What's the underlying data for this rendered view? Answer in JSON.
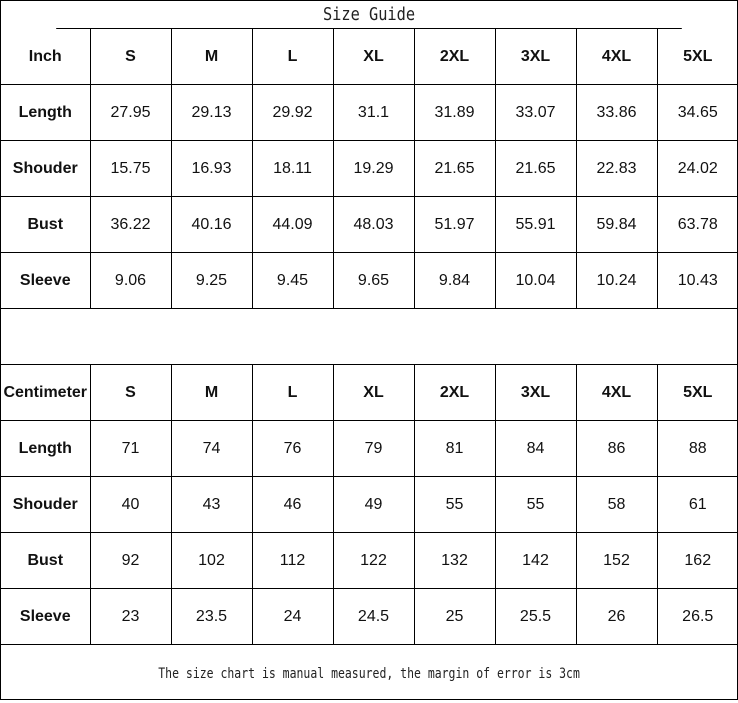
{
  "title": "Size Guide",
  "sizes": [
    "S",
    "M",
    "L",
    "XL",
    "2XL",
    "3XL",
    "4XL",
    "5XL"
  ],
  "tables": [
    {
      "unit": "Inch",
      "rows": [
        {
          "label": "Length",
          "values": [
            "27.95",
            "29.13",
            "29.92",
            "31.1",
            "31.89",
            "33.07",
            "33.86",
            "34.65"
          ]
        },
        {
          "label": "Shouder",
          "values": [
            "15.75",
            "16.93",
            "18.11",
            "19.29",
            "21.65",
            "21.65",
            "22.83",
            "24.02"
          ]
        },
        {
          "label": "Bust",
          "values": [
            "36.22",
            "40.16",
            "44.09",
            "48.03",
            "51.97",
            "55.91",
            "59.84",
            "63.78"
          ]
        },
        {
          "label": "Sleeve",
          "values": [
            "9.06",
            "9.25",
            "9.45",
            "9.65",
            "9.84",
            "10.04",
            "10.24",
            "10.43"
          ]
        }
      ]
    },
    {
      "unit": "Centimeter",
      "rows": [
        {
          "label": "Length",
          "values": [
            "71",
            "74",
            "76",
            "79",
            "81",
            "84",
            "86",
            "88"
          ]
        },
        {
          "label": "Shouder",
          "values": [
            "40",
            "43",
            "46",
            "49",
            "55",
            "55",
            "58",
            "61"
          ]
        },
        {
          "label": "Bust",
          "values": [
            "92",
            "102",
            "112",
            "122",
            "132",
            "142",
            "152",
            "162"
          ]
        },
        {
          "label": "Sleeve",
          "values": [
            "23",
            "23.5",
            "24",
            "24.5",
            "25",
            "25.5",
            "26",
            "26.5"
          ]
        }
      ]
    }
  ],
  "footer": "The size chart is manual measured, the margin of error is 3cm"
}
